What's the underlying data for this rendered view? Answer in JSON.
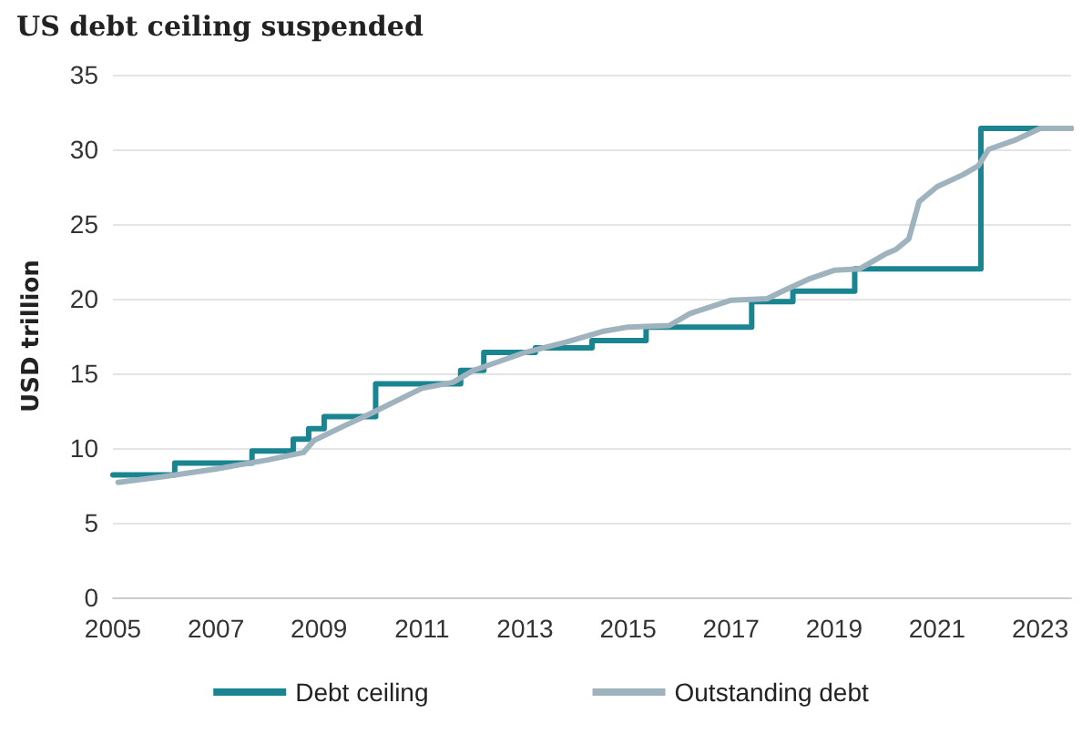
{
  "chart_data": {
    "type": "line",
    "title": "US debt ceiling suspended",
    "ylabel": "USD trillion",
    "xlim": [
      2005,
      2023.6
    ],
    "xticks": [
      2005,
      2007,
      2009,
      2011,
      2013,
      2015,
      2017,
      2019,
      2021,
      2023
    ],
    "ylim": [
      0,
      35
    ],
    "yticks": [
      0,
      5,
      10,
      15,
      20,
      25,
      30,
      35
    ],
    "grid": "y",
    "legend": "bottom",
    "marker": "none",
    "line_style": "solid",
    "series": [
      {
        "name": "Debt ceiling",
        "type": "step",
        "color": "#1a8591",
        "x": [
          2005,
          2006.2,
          2007.7,
          2008.5,
          2008.8,
          2009.1,
          2010.1,
          2011.75,
          2012.2,
          2013.2,
          2014.3,
          2015.35,
          2017.4,
          2018.2,
          2019.4,
          2021.85,
          2023.6
        ],
        "values": [
          8.2,
          9.0,
          9.8,
          10.6,
          11.3,
          12.1,
          14.3,
          15.2,
          16.4,
          16.7,
          17.2,
          18.1,
          19.8,
          20.5,
          22.0,
          31.4,
          31.4
        ]
      },
      {
        "name": "Outstanding debt",
        "color": "#9fb3bf",
        "x": [
          2005.1,
          2006,
          2007,
          2008,
          2008.7,
          2008.9,
          2009.5,
          2010,
          2011,
          2011.6,
          2012,
          2013,
          2013.8,
          2014.5,
          2015,
          2015.8,
          2016.2,
          2017,
          2017.7,
          2018,
          2018.5,
          2019,
          2019.5,
          2020,
          2020.2,
          2020.45,
          2020.65,
          2021,
          2021.5,
          2021.8,
          2022,
          2022.5,
          2023,
          2023.6
        ],
        "values": [
          7.7,
          8.1,
          8.6,
          9.2,
          9.7,
          10.5,
          11.5,
          12.3,
          14.0,
          14.4,
          15.2,
          16.4,
          17.1,
          17.8,
          18.1,
          18.2,
          19.0,
          19.9,
          20.0,
          20.5,
          21.3,
          21.9,
          22.0,
          23.0,
          23.3,
          24.0,
          26.5,
          27.5,
          28.3,
          28.9,
          30.0,
          30.6,
          31.4,
          31.4
        ]
      }
    ]
  }
}
